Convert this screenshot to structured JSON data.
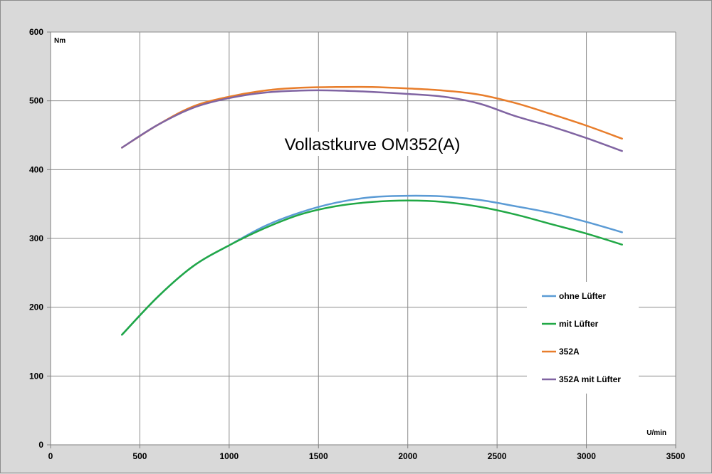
{
  "chart_data": {
    "type": "line",
    "title": "Vollastkurve OM352(A)",
    "xlabel": "U/min",
    "ylabel": "Nm",
    "xlim": [
      0,
      3500
    ],
    "ylim": [
      0,
      600
    ],
    "xticks": [
      0,
      500,
      1000,
      1500,
      2000,
      2500,
      3000,
      3500
    ],
    "yticks": [
      0,
      100,
      200,
      300,
      400,
      500,
      600
    ],
    "grid": true,
    "legend_position": "bottom-right",
    "series": [
      {
        "name": "ohne Lüfter",
        "color": "#5b9bd5",
        "x": [
          400,
          600,
          800,
          1000,
          1200,
          1400,
          1600,
          1800,
          2000,
          2200,
          2400,
          2600,
          2800,
          3000,
          3200
        ],
        "y": [
          160,
          215,
          260,
          290,
          318,
          338,
          352,
          360,
          362,
          361,
          356,
          347,
          337,
          324,
          309
        ]
      },
      {
        "name": "mit Lüfter",
        "color": "#21a846",
        "x": [
          400,
          600,
          800,
          1000,
          1200,
          1400,
          1600,
          1800,
          2000,
          2200,
          2400,
          2600,
          2800,
          3000,
          3200
        ],
        "y": [
          160,
          215,
          260,
          290,
          315,
          335,
          347,
          353,
          355,
          353,
          346,
          335,
          321,
          307,
          291
        ]
      },
      {
        "name": "352A",
        "color": "#e87d2b",
        "x": [
          400,
          600,
          800,
          1000,
          1200,
          1400,
          1600,
          1800,
          2000,
          2200,
          2400,
          2600,
          2800,
          3000,
          3200
        ],
        "y": [
          432,
          465,
          492,
          506,
          515,
          519,
          520,
          520,
          518,
          515,
          509,
          497,
          481,
          464,
          445
        ]
      },
      {
        "name": "352A mit Lüfter",
        "color": "#8064a2",
        "x": [
          400,
          600,
          800,
          1000,
          1200,
          1400,
          1600,
          1800,
          2000,
          2200,
          2400,
          2600,
          2800,
          3000,
          3200
        ],
        "y": [
          432,
          465,
          490,
          504,
          512,
          515,
          515,
          513,
          510,
          506,
          496,
          478,
          463,
          446,
          427
        ]
      }
    ]
  }
}
